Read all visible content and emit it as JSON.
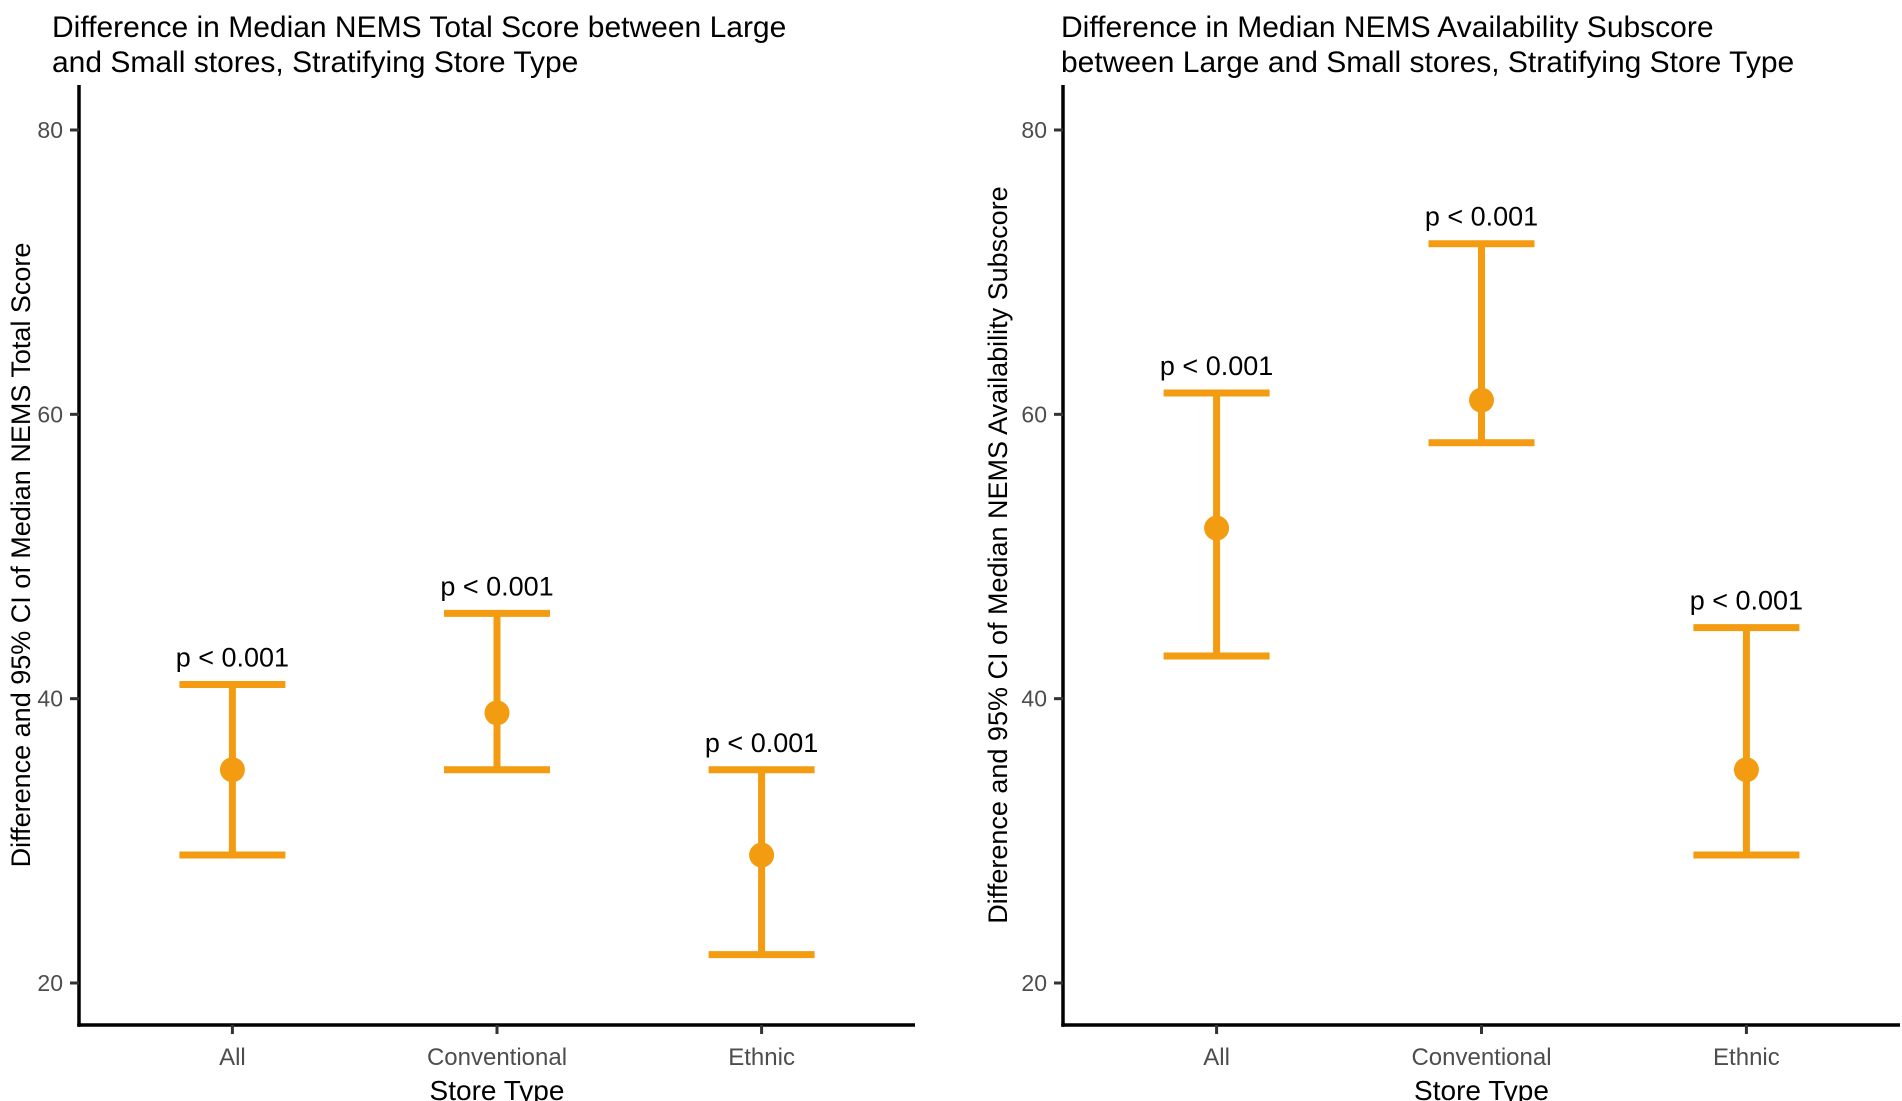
{
  "figure": {
    "background": "#FFFFFF"
  },
  "colors": {
    "accent": "#F39C12",
    "axis_line": "#000000",
    "tick_mark": "#333333",
    "tick_label": "#4D4D4D",
    "text": "#000000"
  },
  "chart_data": [
    {
      "type": "scatter",
      "subtype": "point-estimates-with-95ci-errorbars",
      "title_lines": [
        "Difference in Median NEMS Total Score between Large",
        "and Small stores, Stratifying Store Type"
      ],
      "xlabel": "Store Type",
      "ylabel": "Difference and 95% CI of Median NEMS Total Score",
      "categories": [
        "All",
        "Conventional",
        "Ethnic"
      ],
      "yticks": [
        20,
        40,
        60,
        80
      ],
      "ylim": [
        17,
        83
      ],
      "grid": false,
      "legend": false,
      "series": [
        {
          "category": "All",
          "estimate": 35,
          "ci_low": 29,
          "ci_high": 41,
          "p_label": "p < 0.001"
        },
        {
          "category": "Conventional",
          "estimate": 39,
          "ci_low": 35,
          "ci_high": 46,
          "p_label": "p < 0.001"
        },
        {
          "category": "Ethnic",
          "estimate": 29,
          "ci_low": 22,
          "ci_high": 35,
          "p_label": "p < 0.001"
        }
      ]
    },
    {
      "type": "scatter",
      "subtype": "point-estimates-with-95ci-errorbars",
      "title_lines": [
        "Difference in Median NEMS Availability Subscore",
        "between Large and Small stores, Stratifying Store Type"
      ],
      "xlabel": "Store Type",
      "ylabel": "Difference and 95% CI of Median NEMS Availability Subscore",
      "categories": [
        "All",
        "Conventional",
        "Ethnic"
      ],
      "yticks": [
        20,
        40,
        60,
        80
      ],
      "ylim": [
        17,
        83
      ],
      "grid": false,
      "legend": false,
      "series": [
        {
          "category": "All",
          "estimate": 52,
          "ci_low": 43,
          "ci_high": 61.5,
          "p_label": "p < 0.001"
        },
        {
          "category": "Conventional",
          "estimate": 61,
          "ci_low": 58,
          "ci_high": 72,
          "p_label": "p < 0.001"
        },
        {
          "category": "Ethnic",
          "estimate": 35,
          "ci_low": 29,
          "ci_high": 45,
          "p_label": "p < 0.001"
        }
      ]
    }
  ]
}
